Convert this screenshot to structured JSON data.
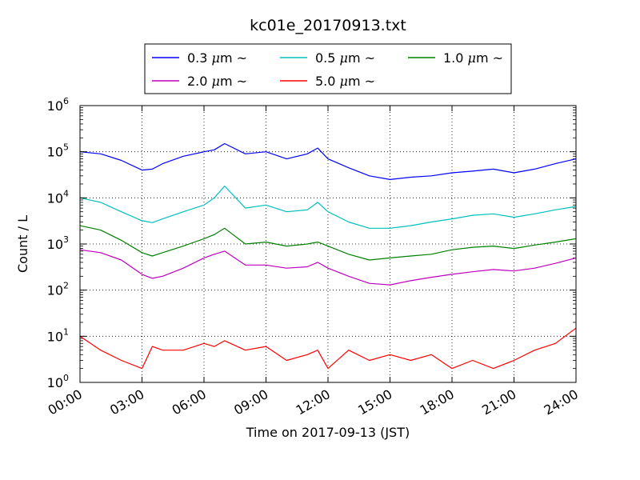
{
  "chart_data": {
    "type": "line",
    "title": "kc01e_20170913.txt",
    "xlabel": "Time on 2017-09-13 (JST)",
    "ylabel": "Count / L",
    "yscale": "log",
    "ylim": [
      1,
      1000000
    ],
    "xlim": [
      "00:00",
      "24:00"
    ],
    "grid": true,
    "legend_position": "top-center, above plot",
    "x_ticks": [
      "00:00",
      "03:00",
      "06:00",
      "09:00",
      "12:00",
      "15:00",
      "18:00",
      "21:00",
      "24:00"
    ],
    "y_ticks": [
      {
        "base": "10",
        "exp": "0",
        "value": 1
      },
      {
        "base": "10",
        "exp": "1",
        "value": 10
      },
      {
        "base": "10",
        "exp": "2",
        "value": 100
      },
      {
        "base": "10",
        "exp": "3",
        "value": 1000
      },
      {
        "base": "10",
        "exp": "4",
        "value": 10000
      },
      {
        "base": "10",
        "exp": "5",
        "value": 100000
      },
      {
        "base": "10",
        "exp": "6",
        "value": 1000000
      }
    ],
    "x_hours": [
      0,
      1,
      2,
      3,
      3.5,
      4,
      5,
      6,
      6.5,
      7,
      8,
      9,
      10,
      11,
      11.5,
      12,
      13,
      14,
      15,
      16,
      17,
      18,
      19,
      20,
      21,
      22,
      23,
      24
    ],
    "series": [
      {
        "name_prefix": "0.3 ",
        "unit_suffix": "m",
        "tilde": "~",
        "color": "#0000ff",
        "values": [
          100000,
          90000,
          65000,
          40000,
          42000,
          55000,
          80000,
          100000,
          110000,
          150000,
          90000,
          100000,
          70000,
          90000,
          120000,
          70000,
          45000,
          30000,
          25000,
          28000,
          30000,
          35000,
          38000,
          42000,
          35000,
          42000,
          55000,
          70000
        ]
      },
      {
        "name_prefix": "0.5 ",
        "unit_suffix": "m",
        "tilde": "~",
        "color": "#00bfbf",
        "values": [
          10000,
          8000,
          5000,
          3200,
          2900,
          3500,
          5000,
          7000,
          10000,
          18000,
          6000,
          7000,
          5000,
          5500,
          8000,
          5000,
          3000,
          2200,
          2200,
          2500,
          3000,
          3500,
          4200,
          4500,
          3800,
          4500,
          5500,
          6500
        ]
      },
      {
        "name_prefix": "1.0 ",
        "unit_suffix": "m",
        "tilde": "~",
        "color": "#008000",
        "values": [
          2500,
          2000,
          1200,
          650,
          550,
          650,
          900,
          1300,
          1600,
          2200,
          1000,
          1100,
          900,
          1000,
          1100,
          900,
          600,
          450,
          500,
          550,
          600,
          750,
          850,
          900,
          800,
          950,
          1100,
          1300
        ]
      },
      {
        "name_prefix": "2.0 ",
        "unit_suffix": "m",
        "tilde": "~",
        "color": "#bf00bf",
        "values": [
          750,
          650,
          450,
          220,
          180,
          200,
          300,
          500,
          600,
          700,
          350,
          350,
          300,
          320,
          400,
          300,
          200,
          140,
          130,
          160,
          190,
          220,
          250,
          280,
          260,
          300,
          380,
          500
        ]
      },
      {
        "name_prefix": "5.0 ",
        "unit_suffix": "m",
        "tilde": "~",
        "color": "#ff0000",
        "values": [
          10,
          5,
          3,
          2,
          6,
          5,
          5,
          7,
          6,
          8,
          5,
          6,
          3,
          4,
          5,
          2,
          5,
          3,
          4,
          3,
          4,
          2,
          3,
          2,
          3,
          5,
          7,
          15
        ]
      }
    ]
  }
}
